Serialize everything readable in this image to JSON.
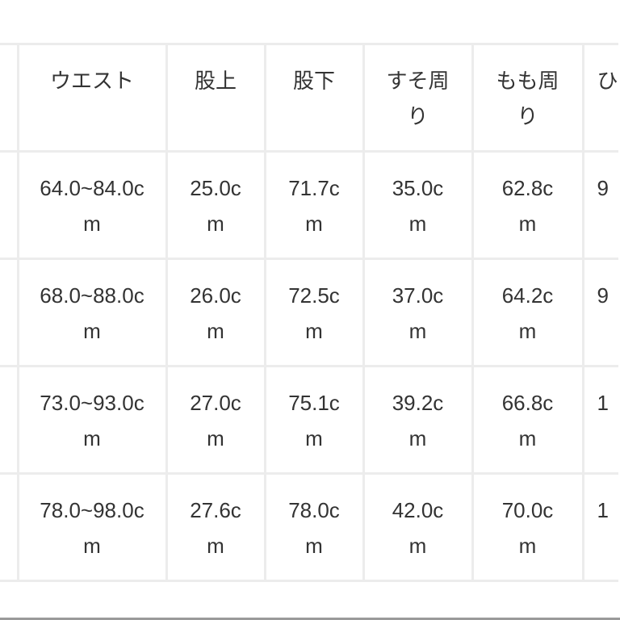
{
  "table": {
    "headers": [
      "",
      "ウエスト",
      "股上",
      "股下",
      "すそ周り",
      "もも周り",
      "ひ"
    ],
    "rows": [
      [
        "",
        "64.0~84.0cm",
        "25.0cm",
        "71.7cm",
        "35.0cm",
        "62.8cm",
        "9"
      ],
      [
        "",
        "68.0~88.0cm",
        "26.0cm",
        "72.5cm",
        "37.0cm",
        "64.2cm",
        "9"
      ],
      [
        "",
        "73.0~93.0cm",
        "27.0cm",
        "75.1cm",
        "39.2cm",
        "66.8cm",
        "1"
      ],
      [
        "",
        "78.0~98.0cm",
        "27.6cm",
        "78.0cm",
        "42.0cm",
        "70.0cm",
        "1"
      ]
    ]
  }
}
